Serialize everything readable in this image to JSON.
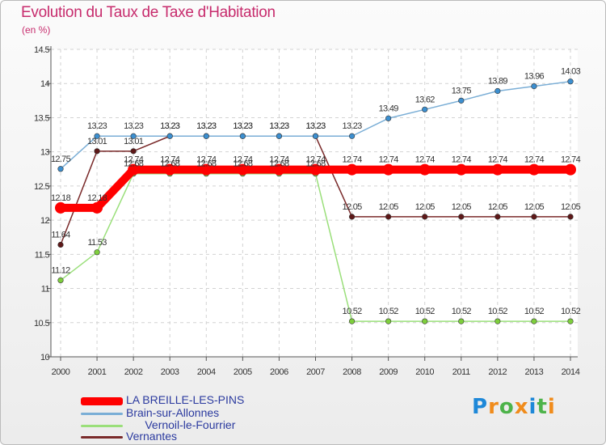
{
  "header": {
    "title": "Evolution du Taux de Taxe d'Habitation",
    "subtitle": "(en %)"
  },
  "logo": {
    "text": "Proxiti",
    "letter_colors": [
      "#1e88d8",
      "#f08c1c",
      "#4db34a",
      "#f08c1c",
      "#1e88d8",
      "#4db34a",
      "#f08c1c"
    ]
  },
  "chart_data": {
    "type": "line",
    "title": "Evolution du Taux de Taxe d'Habitation",
    "subtitle": "(en %)",
    "xlabel": "",
    "ylabel": "",
    "x": [
      "2000",
      "2001",
      "2002",
      "2003",
      "2004",
      "2005",
      "2006",
      "2007",
      "2008",
      "2009",
      "2010",
      "2011",
      "2012",
      "2013",
      "2014"
    ],
    "ylim": [
      10,
      14.5
    ],
    "yticks": [
      "10",
      "10.5",
      "11",
      "11.5",
      "12",
      "12.5",
      "13",
      "13.5",
      "14",
      "14.5"
    ],
    "grid": true,
    "legend_position": "bottom-left",
    "series": [
      {
        "name": "LA BREILLE-LES-PINS",
        "color": "#ff0000",
        "emphasis": "thick",
        "values": [
          12.18,
          12.18,
          12.74,
          12.74,
          12.74,
          12.74,
          12.74,
          12.74,
          12.74,
          12.74,
          12.74,
          12.74,
          12.74,
          12.74,
          12.74
        ],
        "labels": [
          "12.18",
          "12.18",
          "12.74",
          "12.74",
          "12.74",
          "12.74",
          "12.74",
          "12.74",
          "12.74",
          "12.74",
          "12.74",
          "12.74",
          "12.74",
          "12.74",
          "12.74"
        ]
      },
      {
        "name": "Brain-sur-Allonnes",
        "color": "#7aaed6",
        "marker_color": "#3c8fd0",
        "values": [
          12.75,
          13.23,
          13.23,
          13.23,
          13.23,
          13.23,
          13.23,
          13.23,
          13.23,
          13.49,
          13.62,
          13.75,
          13.89,
          13.96,
          14.03
        ],
        "labels": [
          "12.75",
          "13.23",
          "13.23",
          "13.23",
          "13.23",
          "13.23",
          "13.23",
          "13.23",
          "13.23",
          "13.49",
          "13.62",
          "13.75",
          "13.89",
          "13.96",
          "14.03"
        ]
      },
      {
        "name": "Vernoil-le-Fourrier",
        "color": "#9adf7a",
        "marker_color": "#7ecf3c",
        "values": [
          11.12,
          11.53,
          12.68,
          12.68,
          12.68,
          12.68,
          12.68,
          12.68,
          10.52,
          10.52,
          10.52,
          10.52,
          10.52,
          10.52,
          10.52
        ],
        "labels": [
          "11.12",
          "11.53",
          "12.68",
          "12.68",
          "12.68",
          "12.68",
          "12.68",
          "12.68",
          "10.52",
          "10.52",
          "10.52",
          "10.52",
          "10.52",
          "10.52",
          "10.52"
        ]
      },
      {
        "name": "Vernantes",
        "color": "#7a2a2a",
        "marker_color": "#5e1818",
        "values": [
          11.64,
          13.01,
          13.01,
          13.23,
          13.23,
          13.23,
          13.23,
          13.23,
          12.05,
          12.05,
          12.05,
          12.05,
          12.05,
          12.05,
          12.05
        ],
        "labels": [
          "11.64",
          "13.01",
          "13.01",
          "13.23",
          "13.23",
          "13.23",
          "13.23",
          "13.23",
          "12.05",
          "12.05",
          "12.05",
          "12.05",
          "12.05",
          "12.05",
          "12.05"
        ]
      }
    ]
  },
  "legend": {
    "items": [
      {
        "label": "LA BREILLE-LES-PINS",
        "color": "#ff0000"
      },
      {
        "label": "Brain-sur-Allonnes",
        "color": "#7aaed6"
      },
      {
        "label": "      Vernoil-le-Fourrier",
        "color": "#9adf7a"
      },
      {
        "label": "Vernantes",
        "color": "#7a2a2a"
      }
    ]
  }
}
